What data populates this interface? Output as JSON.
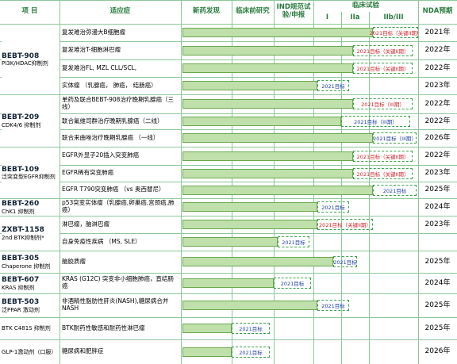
{
  "header": {
    "columns": [
      "项 目",
      "适应症",
      "新药发现",
      "临床前研究",
      "IND规范试验/申报",
      "临床试验",
      "I",
      "IIa",
      "IIb/III",
      "NDA预期"
    ]
  },
  "groups": [
    {
      "name": "BEBT-908",
      "target": "PI3K/HDAC抑制剂",
      "rows": [
        {
          "indication": "复发难治弥漫大B细胞瘤",
          "goal": "2021目标（关键II期）",
          "nda": "2021年"
        },
        {
          "indication": "复发难治T-细胞淋巴瘤",
          "goal": "2021目标（关键II期）",
          "nda": "2022年"
        },
        {
          "indication": "复发难治FL, MZL CLL/SCL,",
          "goal": "2021目标（关键II期）",
          "nda": "2022年"
        },
        {
          "indication": "实体瘤 （乳腺癌， 肺癌， 结肠癌）",
          "goal": "2021目标",
          "nda": "2023年"
        }
      ]
    },
    {
      "name": "BEBT-209",
      "target": "CDK4/6 抑制剂",
      "rows": [
        {
          "indication": "单药及联合BEBT-908治疗晚期乳腺癌（三线）",
          "goal": "2021目标（III期）",
          "nda": "2022年"
        },
        {
          "indication": "联合氟维司群治疗晚期乳腺癌（二线）",
          "goal": "2021目标（III期）",
          "nda": "2022年"
        },
        {
          "indication": "联合来曲唑治疗晚期乳腺癌 （一线）",
          "goal": "2021目标（III期）",
          "nda": "2026年"
        }
      ]
    },
    {
      "name": "BEBT-109",
      "target": "泛突变型EGFR抑制剂",
      "rows": [
        {
          "indication": "EGFR外显子20插入突变肺癌",
          "goal": "2021目标（关键II期）",
          "nda": "2022年"
        },
        {
          "indication": "EGFR稀有突变肺癌",
          "goal": "2021目标（关键II期）",
          "nda": "2023年"
        },
        {
          "indication": "EGFR T790突变肺癌 （vs 奥西替尼）",
          "goal": "2021目标",
          "nda": "2025年"
        }
      ]
    },
    {
      "name": "BEBT-260",
      "target": "ChK1 抑制剂",
      "rows": [
        {
          "indication": "p53突变实体瘤（乳腺癌,卵巢癌,宫颈癌,肺癌）",
          "goal": "2021目标",
          "nda": "2024年"
        }
      ]
    },
    {
      "name": "ZXBT-1158",
      "target": "2nd BTK抑制剂*",
      "rows": [
        {
          "indication": "淋巴瘤，脑淋巴瘤",
          "goal": "2021目标（关键II期）",
          "nda": "2023年"
        },
        {
          "indication": "自身免疫性疾病 （MS, SLE）",
          "goal": "2021目标",
          "nda": null
        }
      ]
    },
    {
      "name": "BEBT-305",
      "target": "Chaperone 抑制剂",
      "rows": [
        {
          "indication": "脑胶质瘤",
          "goal": "2021目标",
          "nda": "2025年"
        }
      ]
    },
    {
      "name": "BEBT-607",
      "target": "KRAS 抑制剂",
      "rows": [
        {
          "indication": "KRAS (G12C) 突变非小细胞肺癌，直结肠癌",
          "goal": "2021目标",
          "nda": "2024年"
        }
      ]
    },
    {
      "name": "BEBT-503",
      "target": "泛PPAR 激动剂",
      "rows": [
        {
          "indication": "非酒精性脂肪性肝炎(NASH),糖尿病合并NASH",
          "goal": "2021目标",
          "nda": "2025年"
        }
      ]
    },
    {
      "name": null,
      "target": "BTK C481S 抑制剂",
      "rows": [
        {
          "indication": "BTK耐药性敏感和耐药性淋巴瘤",
          "goal": "2021目标",
          "nda": "2025年"
        }
      ]
    },
    {
      "name": null,
      "target": "GLP-1激动剂（口服）",
      "rows": [
        {
          "indication": "糖尿病和肥胖症",
          "goal": "2021目标",
          "nda": "2026年"
        }
      ]
    }
  ]
}
